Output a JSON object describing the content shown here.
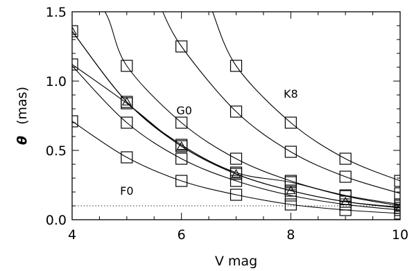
{
  "chart_data": {
    "type": "scatter",
    "title": "",
    "xlabel": "V mag",
    "ylabel_symbol": "θ",
    "ylabel_unit": "(mas)",
    "xlim": [
      4,
      10
    ],
    "ylim": [
      0,
      1.5
    ],
    "x_ticks": [
      4,
      6,
      8,
      10
    ],
    "x_tick_labels": [
      "4",
      "6",
      "8",
      "10"
    ],
    "y_ticks": [
      0.0,
      0.5,
      1.0,
      1.5
    ],
    "y_tick_labels": [
      "0.0",
      "0.5",
      "1.0",
      "1.5"
    ],
    "grid": false,
    "x": [
      4,
      5,
      6,
      7,
      8,
      9,
      10
    ],
    "series": [
      {
        "label": "F0",
        "marker": "square",
        "values": [
          0.71,
          0.45,
          0.28,
          0.18,
          0.11,
          0.07,
          0.045
        ],
        "curve_x": [
          4,
          5,
          6,
          7,
          8,
          9,
          10
        ],
        "curve_y": [
          0.71,
          0.45,
          0.28,
          0.18,
          0.11,
          0.07,
          0.045
        ]
      },
      {
        "label": "",
        "marker": "square",
        "values": [
          null,
          0.7,
          0.44,
          0.28,
          0.175,
          0.11,
          0.07
        ],
        "curve_x": [
          4,
          5,
          6,
          7,
          8,
          9,
          10
        ],
        "curve_y": [
          1.11,
          0.7,
          0.44,
          0.28,
          0.175,
          0.11,
          0.07
        ]
      },
      {
        "label": "G0",
        "marker": "square",
        "values": [
          1.12,
          0.84,
          0.53,
          0.33,
          0.21,
          0.13,
          0.085
        ],
        "curve_x": [
          4,
          5,
          6,
          7,
          8,
          9,
          10
        ],
        "curve_y": [
          1.12,
          0.84,
          0.53,
          0.33,
          0.21,
          0.13,
          0.085
        ]
      },
      {
        "label": "",
        "marker": "triangle",
        "values": [
          1.36,
          0.85,
          0.53,
          0.33,
          0.21,
          0.13,
          0.09
        ],
        "curve_x": [
          4,
          5,
          6,
          7,
          8,
          9,
          10
        ],
        "curve_y": [
          1.36,
          0.85,
          0.53,
          0.33,
          0.21,
          0.13,
          0.09
        ]
      },
      {
        "label": "",
        "marker": "square",
        "values": [
          1.36,
          0.85,
          0.54,
          0.34,
          0.27,
          0.17,
          0.1
        ],
        "curve_x": [
          4,
          5,
          6,
          7,
          8,
          9,
          10
        ],
        "curve_y": [
          1.36,
          0.85,
          0.54,
          0.34,
          0.27,
          0.17,
          0.1
        ]
      },
      {
        "label": "",
        "marker": "square",
        "values": [
          null,
          1.11,
          0.7,
          0.44,
          0.28,
          0.175,
          0.11
        ],
        "curve_x": [
          4,
          4.6,
          5,
          6,
          7,
          8,
          9,
          10
        ],
        "curve_y": [
          1.76,
          1.5,
          1.11,
          0.7,
          0.44,
          0.28,
          0.175,
          0.11
        ]
      },
      {
        "label": "",
        "marker": "square",
        "values": [
          null,
          null,
          1.25,
          0.78,
          0.49,
          0.31,
          0.19
        ],
        "curve_x": [
          5.6,
          6,
          7,
          8,
          9,
          10
        ],
        "curve_y": [
          1.55,
          1.25,
          0.78,
          0.49,
          0.31,
          0.19
        ]
      },
      {
        "label": "K8",
        "marker": "square",
        "values": [
          null,
          null,
          null,
          1.11,
          0.7,
          0.44,
          0.28
        ],
        "curve_x": [
          6.55,
          7,
          8,
          9,
          10
        ],
        "curve_y": [
          1.52,
          1.11,
          0.7,
          0.44,
          0.28
        ]
      }
    ],
    "annotations": [
      {
        "text": "F0",
        "x": 5.0,
        "y": 0.21
      },
      {
        "text": "G0",
        "x": 6.05,
        "y": 0.79
      },
      {
        "text": "K8",
        "x": 8.0,
        "y": 0.91
      }
    ],
    "threshold": {
      "y": 0.1,
      "style": "dotted"
    }
  }
}
